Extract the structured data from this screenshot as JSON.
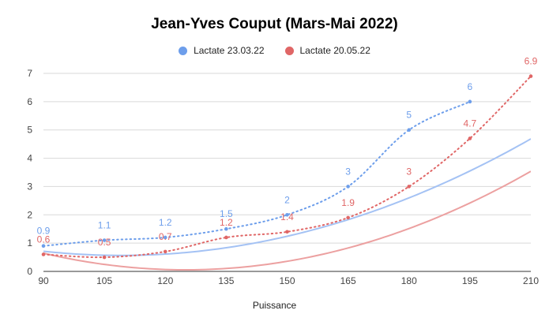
{
  "chart_data": {
    "type": "line",
    "title": "Jean-Yves Couput (Mars-Mai 2022)",
    "xlabel": "Puissance",
    "ylabel": "",
    "xlim": [
      90,
      210
    ],
    "ylim": [
      0,
      7
    ],
    "xticks": [
      90,
      105,
      120,
      135,
      150,
      165,
      180,
      195,
      210
    ],
    "yticks": [
      0,
      1,
      2,
      3,
      4,
      5,
      6,
      7
    ],
    "grid": true,
    "legend_position": "top",
    "trendline": "polynomial",
    "series": [
      {
        "name": "Lactate 23.03.22",
        "color": "#6d9eeb",
        "trend_color": "#a4c2f4",
        "x": [
          90,
          105,
          120,
          135,
          150,
          165,
          180,
          195
        ],
        "values": [
          0.9,
          1.1,
          1.2,
          1.5,
          2,
          3,
          5,
          6
        ],
        "labels": [
          "0.9",
          "1.1",
          "1.2",
          "1.5",
          "2",
          "3",
          "5",
          "6"
        ],
        "trend_coeffs": [
          5.3839,
          -0.08833,
          0.00040476
        ]
      },
      {
        "name": "Lactate 20.05.22",
        "color": "#e06666",
        "trend_color": "#eca0a0",
        "x": [
          90,
          105,
          120,
          135,
          150,
          165,
          180,
          195,
          210
        ],
        "values": [
          0.6,
          0.5,
          0.7,
          1.2,
          1.4,
          1.9,
          3,
          4.7,
          6.9
        ],
        "labels": [
          "0.6",
          "0.5",
          "0.7",
          "1.2",
          "1.4",
          "1.9",
          "3",
          "4.7",
          "6.9"
        ],
        "trend_coeffs": [
          7.5768,
          -0.12038,
          0.00048167
        ]
      }
    ]
  }
}
